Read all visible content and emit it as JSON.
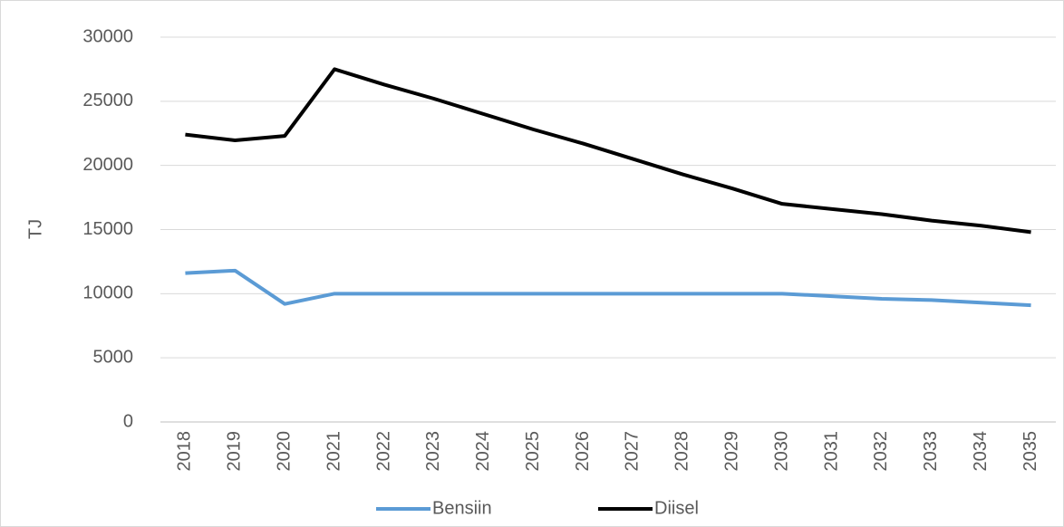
{
  "chart_data": {
    "type": "line",
    "y_label": "TJ",
    "categories": [
      "2018",
      "2019",
      "2020",
      "2021",
      "2022",
      "2023",
      "2024",
      "2025",
      "2026",
      "2027",
      "2028",
      "2029",
      "2030",
      "2031",
      "2032",
      "2033",
      "2034",
      "2035"
    ],
    "series": [
      {
        "name": "Bensiin",
        "color": "#5b9bd5",
        "values": [
          11600,
          11800,
          9200,
          10000,
          10000,
          10000,
          10000,
          10000,
          10000,
          10000,
          10000,
          10000,
          10000,
          9800,
          9600,
          9500,
          9300,
          9100
        ]
      },
      {
        "name": "Diisel",
        "color": "#000000",
        "values": [
          22400,
          21950,
          22300,
          27500,
          26300,
          25200,
          24000,
          22800,
          21700,
          20500,
          19300,
          18200,
          17000,
          16600,
          16200,
          15700,
          15300,
          14800
        ]
      }
    ],
    "ylim": [
      0,
      30000
    ],
    "yticks": [
      0,
      5000,
      10000,
      15000,
      20000,
      25000,
      30000
    ],
    "grid": true,
    "legend": "bottom"
  }
}
